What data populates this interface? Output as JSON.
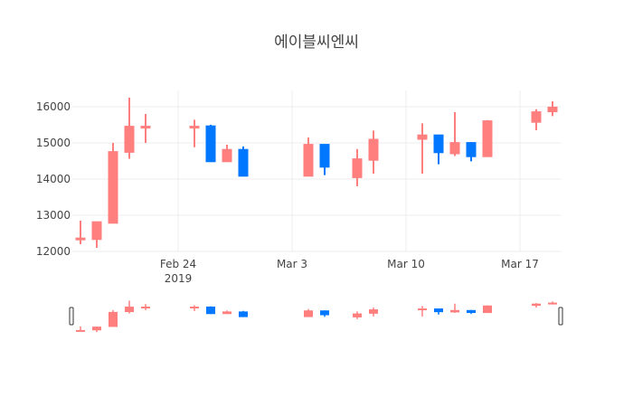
{
  "chart_data": {
    "type": "candlestick",
    "title": "에이블씨엔씨",
    "xlabel": "",
    "ylabel": "",
    "ylim": [
      12000,
      16500
    ],
    "y_ticks": [
      12000,
      13000,
      14000,
      15000,
      16000
    ],
    "x_ticks": [
      {
        "label": "Feb 24",
        "sublabel": "2019",
        "date": "2019-02-24"
      },
      {
        "label": "Mar 3",
        "sublabel": "",
        "date": "2019-03-03"
      },
      {
        "label": "Mar 10",
        "sublabel": "",
        "date": "2019-03-10"
      },
      {
        "label": "Mar 17",
        "sublabel": "",
        "date": "2019-03-17"
      }
    ],
    "grid": true,
    "rangeslider": true,
    "increasing_color": "#FF7F7F",
    "decreasing_color": "#0077FF",
    "series": [
      {
        "date": "2019-02-18",
        "open": 12350,
        "high": 12850,
        "low": 12200,
        "close": 12370
      },
      {
        "date": "2019-02-19",
        "open": 12330,
        "high": 12830,
        "low": 12100,
        "close": 12820
      },
      {
        "date": "2019-02-20",
        "open": 12780,
        "high": 15000,
        "low": 12780,
        "close": 14760
      },
      {
        "date": "2019-02-21",
        "open": 14740,
        "high": 16250,
        "low": 14560,
        "close": 15460
      },
      {
        "date": "2019-02-22",
        "open": 15450,
        "high": 15800,
        "low": 15000,
        "close": 15460
      },
      {
        "date": "2019-02-25",
        "open": 15450,
        "high": 15640,
        "low": 14880,
        "close": 15460
      },
      {
        "date": "2019-02-26",
        "open": 15470,
        "high": 15500,
        "low": 14480,
        "close": 14480
      },
      {
        "date": "2019-02-27",
        "open": 14480,
        "high": 14950,
        "low": 14480,
        "close": 14820
      },
      {
        "date": "2019-02-28",
        "open": 14820,
        "high": 14900,
        "low": 14080,
        "close": 14080
      },
      {
        "date": "2019-03-04",
        "open": 14080,
        "high": 15150,
        "low": 14080,
        "close": 14960
      },
      {
        "date": "2019-03-05",
        "open": 14960,
        "high": 14960,
        "low": 14110,
        "close": 14330
      },
      {
        "date": "2019-03-07",
        "open": 14040,
        "high": 14830,
        "low": 13800,
        "close": 14560
      },
      {
        "date": "2019-03-08",
        "open": 14520,
        "high": 15340,
        "low": 14150,
        "close": 15100
      },
      {
        "date": "2019-03-11",
        "open": 15100,
        "high": 15540,
        "low": 14150,
        "close": 15220
      },
      {
        "date": "2019-03-12",
        "open": 15220,
        "high": 15220,
        "low": 14410,
        "close": 14730
      },
      {
        "date": "2019-03-13",
        "open": 14700,
        "high": 15850,
        "low": 14640,
        "close": 15010
      },
      {
        "date": "2019-03-14",
        "open": 15010,
        "high": 15010,
        "low": 14490,
        "close": 14620
      },
      {
        "date": "2019-03-15",
        "open": 14620,
        "high": 15630,
        "low": 14620,
        "close": 15610
      },
      {
        "date": "2019-03-18",
        "open": 15570,
        "high": 15930,
        "low": 15350,
        "close": 15860
      },
      {
        "date": "2019-03-19",
        "open": 15860,
        "high": 16150,
        "low": 15740,
        "close": 15990
      }
    ]
  }
}
